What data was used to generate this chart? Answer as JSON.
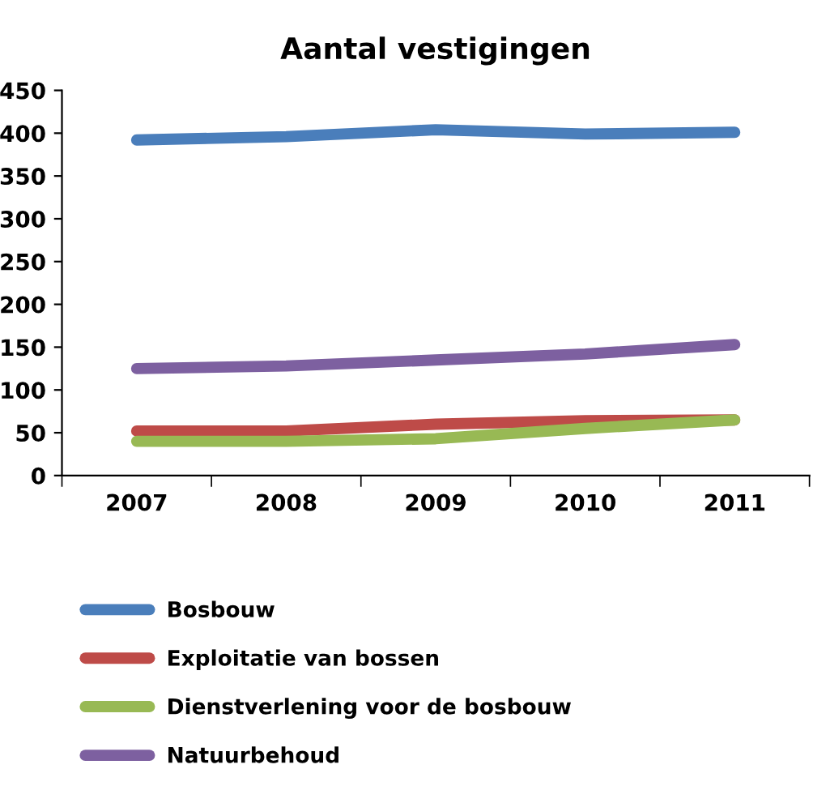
{
  "chart_data": {
    "type": "line",
    "title": "Aantal vestigingen",
    "categories": [
      "2007",
      "2008",
      "2009",
      "2010",
      "2011"
    ],
    "series": [
      {
        "name": "Bosbouw",
        "color": "#4a7ebb",
        "values": [
          392,
          396,
          404,
          399,
          401
        ]
      },
      {
        "name": "Exploitatie van bossen",
        "color": "#be4b48",
        "values": [
          52,
          52,
          60,
          64,
          65
        ]
      },
      {
        "name": "Dienstverlening voor de bosbouw",
        "color": "#98b954",
        "values": [
          40,
          40,
          43,
          55,
          65
        ]
      },
      {
        "name": "Natuurbehoud",
        "color": "#7d60a0",
        "values": [
          125,
          128,
          135,
          142,
          153
        ]
      }
    ],
    "ylim": [
      0,
      450
    ],
    "yticks": [
      0,
      50,
      100,
      150,
      200,
      250,
      300,
      350,
      400,
      450
    ],
    "grid": false,
    "legend": "bottom",
    "marker": "none",
    "line_style": "solid"
  }
}
